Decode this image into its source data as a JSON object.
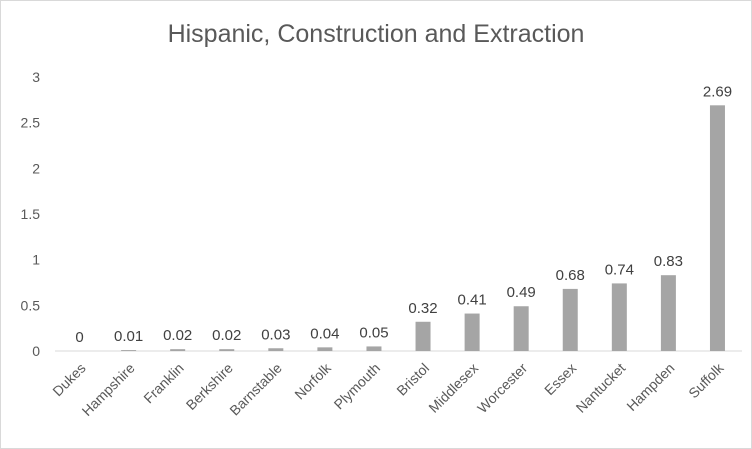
{
  "chart_data": {
    "type": "bar",
    "title": "Hispanic, Construction and Extraction",
    "categories": [
      "Dukes",
      "Hampshire",
      "Franklin",
      "Berkshire",
      "Barnstable",
      "Norfolk",
      "Plymouth",
      "Bristol",
      "Middlesex",
      "Worcester",
      "Essex",
      "Nantucket",
      "Hampden",
      "Suffolk"
    ],
    "values": [
      0,
      0.01,
      0.02,
      0.02,
      0.03,
      0.04,
      0.05,
      0.32,
      0.41,
      0.49,
      0.68,
      0.74,
      0.83,
      2.69
    ],
    "value_labels": [
      "0",
      "0.01",
      "0.02",
      "0.02",
      "0.03",
      "0.04",
      "0.05",
      "0.32",
      "0.41",
      "0.49",
      "0.68",
      "0.74",
      "0.83",
      "2.69"
    ],
    "ylim": [
      0,
      3
    ],
    "yticks": [
      "0",
      "0.5",
      "1",
      "1.5",
      "2",
      "2.5",
      "3"
    ],
    "grid": false,
    "legend": "none",
    "colors": {
      "bar": "#a5a5a5",
      "text": "#595959",
      "axis": "#d9d9d9",
      "label": "#404040"
    }
  }
}
